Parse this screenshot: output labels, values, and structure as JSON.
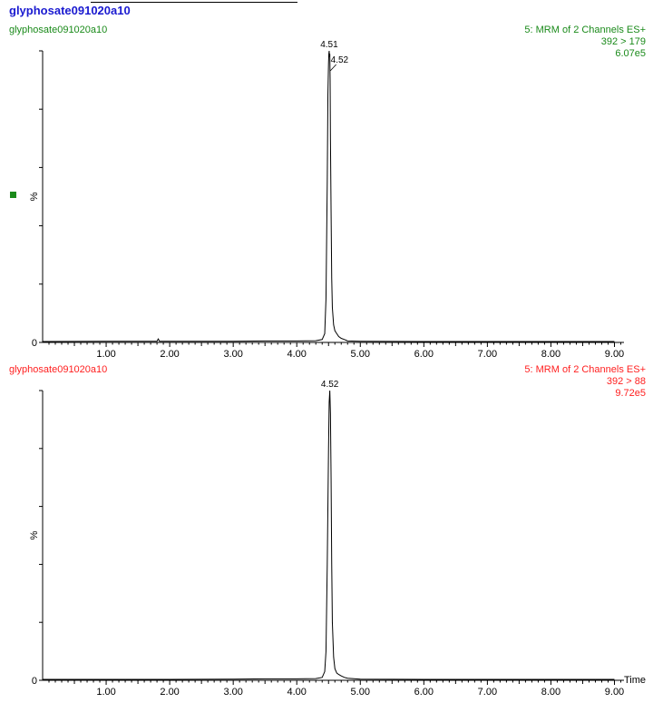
{
  "sample_title": "glyphosate091020a10",
  "x_axis_label": "Time",
  "colors": {
    "title": "#1a1ad0",
    "trace": "#000000",
    "channel1": "#1a8a1a",
    "channel2": "#ff2020"
  },
  "chart_data": [
    {
      "type": "line",
      "name_label": "glyphosate091020a10",
      "channel_label": "5: MRM of 2 Channels ES+",
      "transition": "392 > 179",
      "intensity": "6.07e5",
      "ylabel": "%",
      "y_zero_label": "0",
      "xlim": [
        0,
        9.15
      ],
      "ylim": [
        0,
        100
      ],
      "x_ticks": [
        "1.00",
        "2.00",
        "3.00",
        "4.00",
        "5.00",
        "6.00",
        "7.00",
        "8.00",
        "9.00"
      ],
      "peak_labels": [
        {
          "text": "4.51",
          "x": 4.51
        },
        {
          "text": "4.52",
          "x": 4.52
        }
      ],
      "x": [
        0.0,
        1.0,
        1.8,
        1.82,
        1.84,
        2.5,
        3.0,
        3.5,
        4.0,
        4.3,
        4.4,
        4.44,
        4.46,
        4.48,
        4.49,
        4.5,
        4.505,
        4.51,
        4.515,
        4.52,
        4.525,
        4.53,
        4.54,
        4.55,
        4.56,
        4.58,
        4.6,
        4.63,
        4.66,
        4.7,
        4.75,
        4.8,
        5.0,
        6.0,
        7.0,
        8.0,
        9.0
      ],
      "y": [
        0.3,
        0.4,
        0.4,
        1.2,
        0.4,
        0.4,
        0.4,
        0.5,
        0.5,
        0.6,
        1.0,
        3.0,
        15.0,
        55.0,
        85.0,
        96.0,
        99.0,
        100.0,
        98.0,
        99.0,
        90.0,
        70.0,
        45.0,
        22.0,
        12.0,
        6.0,
        4.0,
        3.0,
        2.0,
        1.4,
        1.0,
        0.5,
        0.4,
        0.3,
        0.3,
        0.3,
        0.3
      ]
    },
    {
      "type": "line",
      "name_label": "glyphosate091020a10",
      "channel_label": "5: MRM of 2 Channels ES+",
      "transition": "392 > 88",
      "intensity": "9.72e5",
      "ylabel": "%",
      "y_zero_label": "0",
      "xlim": [
        0,
        9.15
      ],
      "ylim": [
        0,
        100
      ],
      "x_ticks": [
        "1.00",
        "2.00",
        "3.00",
        "4.00",
        "5.00",
        "6.00",
        "7.00",
        "8.00",
        "9.00"
      ],
      "peak_labels": [
        {
          "text": "4.52",
          "x": 4.52
        }
      ],
      "x": [
        0.0,
        1.0,
        2.0,
        3.0,
        3.5,
        4.0,
        4.3,
        4.4,
        4.44,
        4.46,
        4.48,
        4.5,
        4.51,
        4.52,
        4.53,
        4.54,
        4.55,
        4.56,
        4.58,
        4.6,
        4.63,
        4.66,
        4.7,
        4.75,
        4.8,
        5.0,
        6.0,
        7.0,
        8.0,
        9.0
      ],
      "y": [
        0.3,
        0.3,
        0.3,
        0.4,
        0.5,
        0.5,
        0.6,
        1.0,
        3.0,
        10.0,
        40.0,
        80.0,
        96.0,
        100.0,
        92.0,
        70.0,
        40.0,
        20.0,
        8.0,
        4.0,
        2.5,
        2.0,
        1.5,
        1.0,
        0.7,
        0.4,
        0.3,
        0.3,
        0.3,
        0.3
      ]
    }
  ]
}
